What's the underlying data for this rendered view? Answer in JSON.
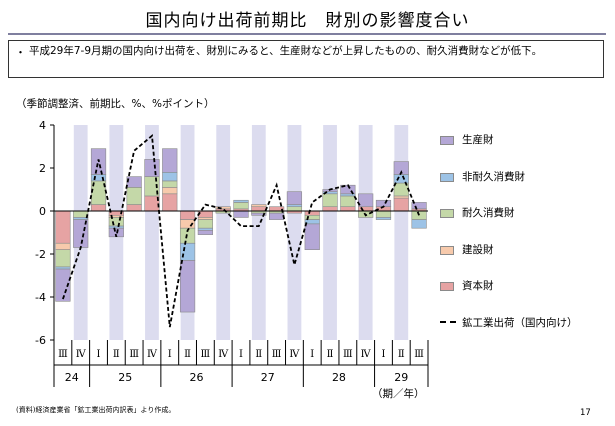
{
  "header": {
    "title": "国内向け出荷前期比　財別の影響度合い"
  },
  "note": {
    "bullet": "・",
    "text": "平成29年7-9月期の国内向け出荷を、財別にみると、生産財などが上昇したものの、耐久消費財などが低下。"
  },
  "unit_label": "（季節調整済、前期比、%、%ポイント）",
  "period_label": "（期／年）",
  "source": "(資料)経済産業省「鉱工業出荷内訳表」より作成。",
  "page_number": "17",
  "chart_data": {
    "type": "bar",
    "stacked": true,
    "ylim": [
      -6,
      4
    ],
    "yticks": [
      -6,
      -4,
      -2,
      0,
      2,
      4
    ],
    "categories": [
      "Ⅲ",
      "Ⅳ",
      "Ⅰ",
      "Ⅱ",
      "Ⅲ",
      "Ⅳ",
      "Ⅰ",
      "Ⅱ",
      "Ⅲ",
      "Ⅳ",
      "Ⅰ",
      "Ⅱ",
      "Ⅲ",
      "Ⅳ",
      "Ⅰ",
      "Ⅱ",
      "Ⅲ",
      "Ⅳ",
      "Ⅰ",
      "Ⅱ",
      "Ⅲ"
    ],
    "year_labels": [
      "24",
      "25",
      "26",
      "27",
      "28",
      "29"
    ],
    "year_spans": [
      [
        0,
        1
      ],
      [
        2,
        5
      ],
      [
        6,
        9
      ],
      [
        10,
        13
      ],
      [
        14,
        17
      ],
      [
        18,
        20
      ]
    ],
    "shaded_columns": [
      1,
      3,
      5,
      7,
      9,
      11,
      13,
      15,
      17,
      19
    ],
    "series": [
      {
        "name": "資本財",
        "color": "#e6a3a3",
        "values": [
          -1.5,
          0.0,
          0.3,
          -0.2,
          0.3,
          0.7,
          0.8,
          -0.4,
          -0.3,
          0.1,
          0.1,
          0.2,
          0.2,
          -0.1,
          -0.2,
          0.2,
          0.2,
          0.2,
          0.2,
          0.6,
          0.1
        ]
      },
      {
        "name": "建設財",
        "color": "#f7caac",
        "values": [
          -0.3,
          0.0,
          0.0,
          -0.1,
          0.0,
          0.0,
          0.3,
          -0.4,
          -0.1,
          0.1,
          0.0,
          0.1,
          0.0,
          0.0,
          0.0,
          0.0,
          0.0,
          0.0,
          0.0,
          0.1,
          0.0
        ]
      },
      {
        "name": "耐久消費財",
        "color": "#c4d8a8",
        "values": [
          -0.8,
          -0.3,
          1.1,
          -0.4,
          0.8,
          0.9,
          0.3,
          -0.7,
          -0.4,
          -0.1,
          0.3,
          -0.1,
          -0.1,
          0.2,
          -0.2,
          0.6,
          0.5,
          -0.3,
          -0.3,
          0.6,
          -0.4
        ]
      },
      {
        "name": "非耐久消費財",
        "color": "#9dc3e6",
        "values": [
          -0.1,
          -0.1,
          0.3,
          -0.1,
          0.0,
          0.0,
          0.4,
          -0.8,
          -0.1,
          0.0,
          0.1,
          0.0,
          0.0,
          0.1,
          -0.2,
          0.1,
          0.1,
          0.0,
          -0.1,
          0.4,
          -0.4
        ]
      },
      {
        "name": "生産財",
        "color": "#b4a7d6",
        "values": [
          -1.5,
          -1.3,
          1.2,
          -0.4,
          0.5,
          0.8,
          1.1,
          -2.4,
          -0.2,
          0.0,
          -0.3,
          -0.1,
          -0.3,
          0.6,
          -1.2,
          0.1,
          0.4,
          0.6,
          0.3,
          0.6,
          0.3
        ]
      }
    ],
    "line": {
      "name": "鉱工業出荷（国内向け）",
      "color": "#000000",
      "style": "dashed",
      "values": [
        -4.1,
        -1.7,
        2.4,
        -1.2,
        2.8,
        3.5,
        -5.4,
        -0.9,
        0.3,
        0.1,
        -0.7,
        -0.7,
        1.2,
        -2.5,
        0.4,
        1.0,
        1.2,
        -0.2,
        0.2,
        1.8,
        -0.2
      ]
    },
    "legend": [
      "生産財",
      "非耐久消費財",
      "耐久消費財",
      "建設財",
      "資本財",
      "鉱工業出荷（国内向け）"
    ],
    "legend_position": "right",
    "grid": false
  }
}
